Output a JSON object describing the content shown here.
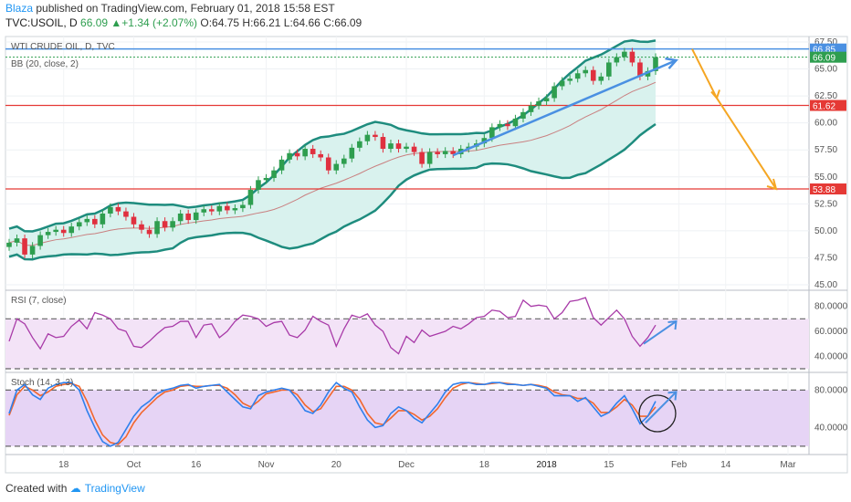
{
  "header": {
    "user": "Blaza",
    "published": " published on TradingView.com, February 01, 2018 15:58 EST",
    "symbol": "TVC:USOIL, D",
    "last": "66.09",
    "change": "+1.34 (+2.07%)",
    "open": "O:64.75",
    "high": "H:66.21",
    "low": "L:64.66",
    "close": "C:66.09"
  },
  "footer": {
    "created_with": "Created with",
    "brand": "TradingView"
  },
  "colors": {
    "candle_up": "#2e9e4f",
    "candle_down": "#e0303f",
    "band": "#1e8c7e",
    "band_fill": "#d9f2ee",
    "basis": "#c98080",
    "trend_blue": "#4a90e2",
    "forecast_orange": "#f5a623",
    "hline_red": "#e53935",
    "rsi_line": "#a83aa8",
    "rsi_fill": "#f3e3f7",
    "stoch_k": "#2f80ed",
    "stoch_d": "#f2662c",
    "stoch_fill": "#e6d4f5"
  },
  "chart_data": [
    {
      "type": "candlestick",
      "legend": [
        "WTI CRUDE OIL, D, TVC",
        "BB (20, close, 2)"
      ],
      "ylim": [
        45,
        67.5
      ],
      "y_ticks": [
        45.0,
        47.5,
        50.0,
        52.5,
        55.0,
        57.5,
        60.0,
        62.5,
        65.0,
        67.5
      ],
      "x_ticks": [
        "18",
        "Oct",
        "16",
        "Nov",
        "20",
        "Dec",
        "18",
        "2018",
        "15",
        "Feb",
        "14",
        "Mar"
      ],
      "price_labels": [
        {
          "value": 66.85,
          "text": "66.85",
          "color": "#4a90e2"
        },
        {
          "value": 66.09,
          "text": "66.09",
          "color": "#2e9e4f"
        },
        {
          "value": 61.62,
          "text": "61.62",
          "color": "#e53935"
        },
        {
          "value": 53.88,
          "text": "53.88",
          "color": "#e53935"
        }
      ],
      "closes": [
        48.9,
        49.3,
        47.8,
        48.6,
        49.6,
        49.9,
        50.1,
        49.8,
        50.4,
        50.8,
        51.1,
        50.6,
        51.6,
        52.2,
        51.8,
        51.3,
        50.6,
        50.1,
        49.7,
        50.9,
        50.3,
        50.9,
        51.6,
        51.0,
        51.7,
        52.0,
        51.8,
        52.3,
        51.9,
        52.1,
        52.4,
        53.8,
        54.7,
        54.9,
        55.6,
        56.6,
        57.2,
        56.9,
        57.6,
        57.1,
        56.8,
        55.6,
        56.2,
        56.7,
        57.7,
        58.3,
        58.9,
        58.7,
        57.6,
        58.1,
        57.6,
        57.8,
        57.3,
        56.2,
        57.3,
        57.1,
        57.4,
        57.1,
        57.6,
        57.8,
        58.1,
        58.6,
        59.6,
        59.9,
        59.7,
        60.4,
        61.0,
        61.6,
        62.0,
        62.3,
        63.4,
        63.9,
        64.1,
        64.6,
        64.9,
        63.9,
        64.3,
        65.6,
        66.1,
        66.6,
        65.6,
        64.3,
        64.8,
        66.1
      ],
      "rsi_ylim": [
        30,
        90
      ],
      "rsi_ticks": [
        40.0,
        60.0,
        80.0
      ],
      "rsi_levels": [
        70,
        30
      ],
      "rsi_legend": "RSI (7, close)",
      "rsi": [
        52,
        70,
        66,
        55,
        46,
        58,
        55,
        56,
        64,
        69,
        62,
        75,
        73,
        70,
        62,
        60,
        48,
        47,
        52,
        58,
        63,
        64,
        68,
        68,
        55,
        65,
        66,
        55,
        60,
        68,
        73,
        72,
        70,
        64,
        67,
        68,
        57,
        55,
        61,
        72,
        68,
        65,
        48,
        62,
        73,
        71,
        74,
        65,
        60,
        47,
        42,
        56,
        51,
        61,
        56,
        58,
        60,
        64,
        62,
        66,
        71,
        72,
        77,
        76,
        71,
        72,
        85,
        80,
        81,
        80,
        70,
        75,
        84,
        85,
        87,
        71,
        65,
        71,
        77,
        70,
        56,
        48,
        55,
        65
      ],
      "stoch_ylim": [
        15,
        95
      ],
      "stoch_ticks": [
        40.0,
        80.0
      ],
      "stoch_levels": [
        80,
        20
      ],
      "stoch_legend": "Stoch (14, 3, 3)",
      "stoch_k": [
        55,
        80,
        86,
        75,
        70,
        82,
        86,
        88,
        88,
        80,
        58,
        40,
        25,
        20,
        24,
        38,
        52,
        62,
        68,
        76,
        80,
        82,
        85,
        86,
        82,
        84,
        85,
        86,
        78,
        70,
        62,
        60,
        74,
        78,
        80,
        82,
        80,
        70,
        58,
        55,
        64,
        78,
        88,
        82,
        78,
        62,
        48,
        40,
        42,
        55,
        62,
        58,
        50,
        45,
        55,
        65,
        78,
        86,
        88,
        88,
        86,
        86,
        88,
        88,
        86,
        86,
        85,
        86,
        84,
        82,
        74,
        74,
        74,
        68,
        72,
        62,
        52,
        56,
        66,
        74,
        60,
        44,
        52,
        68
      ],
      "stoch_d": [
        53,
        75,
        84,
        80,
        74,
        78,
        84,
        86,
        87,
        84,
        68,
        48,
        32,
        24,
        22,
        30,
        45,
        56,
        64,
        72,
        78,
        80,
        84,
        85,
        84,
        84,
        85,
        85,
        82,
        75,
        66,
        62,
        68,
        76,
        78,
        80,
        80,
        75,
        64,
        57,
        60,
        72,
        84,
        84,
        80,
        70,
        55,
        45,
        43,
        50,
        58,
        58,
        54,
        48,
        52,
        60,
        72,
        82,
        86,
        88,
        87,
        86,
        87,
        88,
        87,
        86,
        85,
        86,
        85,
        83,
        78,
        75,
        74,
        71,
        71,
        66,
        56,
        56,
        62,
        70,
        64,
        52,
        52,
        62
      ]
    }
  ]
}
